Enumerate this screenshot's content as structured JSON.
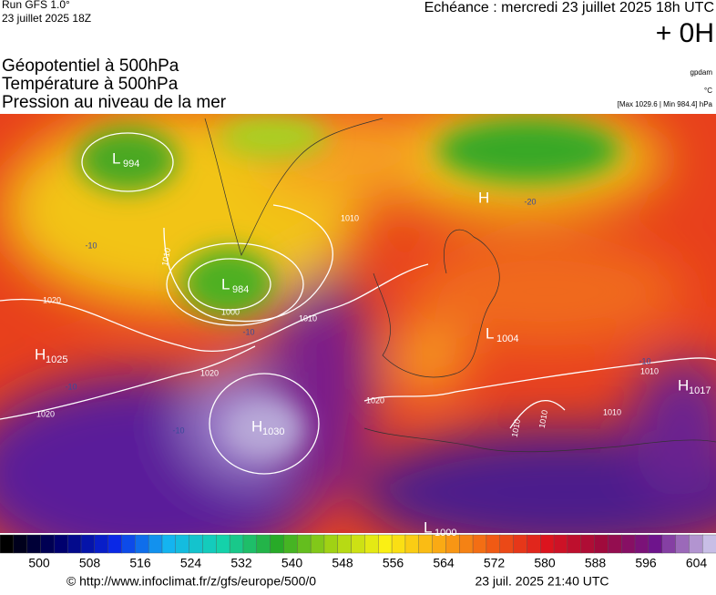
{
  "header": {
    "run": "Run GFS 1.0°",
    "date": "23 juillet 2025 18Z",
    "echeance": "Echéance : mercredi 23 juillet 2025 18h UTC",
    "offset": "+ 0H",
    "titles": [
      "Géopotentiel à 500hPa",
      "Température à 500hPa",
      "Pression au niveau de la mer"
    ],
    "units": [
      "gpdam",
      "°C"
    ],
    "range": "[Max 1029.6 | Min 984.4] hPa"
  },
  "map": {
    "pressure_centers": [
      {
        "letter": "L",
        "value": "994"
      },
      {
        "letter": "L",
        "value": "984"
      },
      {
        "letter": "H",
        "value": "1025"
      },
      {
        "letter": "H",
        "value": "1030"
      },
      {
        "letter": "H"
      },
      {
        "letter": "L",
        "value": "1004"
      },
      {
        "letter": "H",
        "value": "1017"
      },
      {
        "letter": "L",
        "value": "1000"
      }
    ],
    "isobar_labels": [
      "1020",
      "1020",
      "1020",
      "1020",
      "1000",
      "1010",
      "1010",
      "1010",
      "1010",
      "1010",
      "1010",
      "1010"
    ],
    "temperature_labels": [
      "-10",
      "-10",
      "-10",
      "-10",
      "-20",
      "-10"
    ]
  },
  "colorbar": {
    "labels": [
      500,
      508,
      516,
      524,
      532,
      540,
      548,
      556,
      564,
      572,
      580,
      588,
      596,
      604
    ]
  },
  "footer": {
    "url": "© http://www.infoclimat.fr/z/gfs/europe/500/0",
    "timestamp": "23 juil. 2025 21:40 UTC"
  }
}
